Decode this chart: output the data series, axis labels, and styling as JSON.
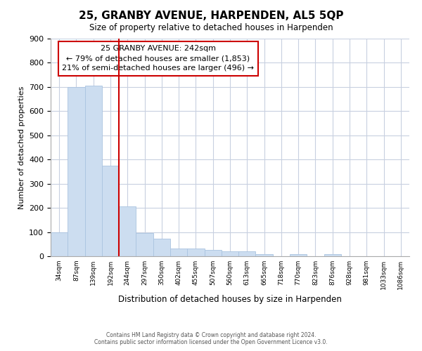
{
  "title": "25, GRANBY AVENUE, HARPENDEN, AL5 5QP",
  "subtitle": "Size of property relative to detached houses in Harpenden",
  "xlabel": "Distribution of detached houses by size in Harpenden",
  "ylabel": "Number of detached properties",
  "categories": [
    "34sqm",
    "87sqm",
    "139sqm",
    "192sqm",
    "244sqm",
    "297sqm",
    "350sqm",
    "402sqm",
    "455sqm",
    "507sqm",
    "560sqm",
    "613sqm",
    "665sqm",
    "718sqm",
    "770sqm",
    "823sqm",
    "876sqm",
    "928sqm",
    "981sqm",
    "1033sqm",
    "1086sqm"
  ],
  "values": [
    100,
    700,
    706,
    375,
    207,
    95,
    72,
    33,
    33,
    25,
    20,
    20,
    10,
    0,
    10,
    0,
    8,
    0,
    0,
    0,
    0
  ],
  "bar_color": "#ccddf0",
  "bar_edge_color": "#aac4e0",
  "vline_color": "#cc0000",
  "vline_index": 4,
  "annotation_title": "25 GRANBY AVENUE: 242sqm",
  "annotation_line1": "← 79% of detached houses are smaller (1,853)",
  "annotation_line2": "21% of semi-detached houses are larger (496) →",
  "annotation_box_color": "#cc0000",
  "ylim": [
    0,
    900
  ],
  "yticks": [
    0,
    100,
    200,
    300,
    400,
    500,
    600,
    700,
    800,
    900
  ],
  "footer1": "Contains HM Land Registry data © Crown copyright and database right 2024.",
  "footer2": "Contains public sector information licensed under the Open Government Licence v3.0.",
  "bg_color": "#ffffff",
  "plot_bg_color": "#ffffff",
  "grid_color": "#c8d0e0"
}
